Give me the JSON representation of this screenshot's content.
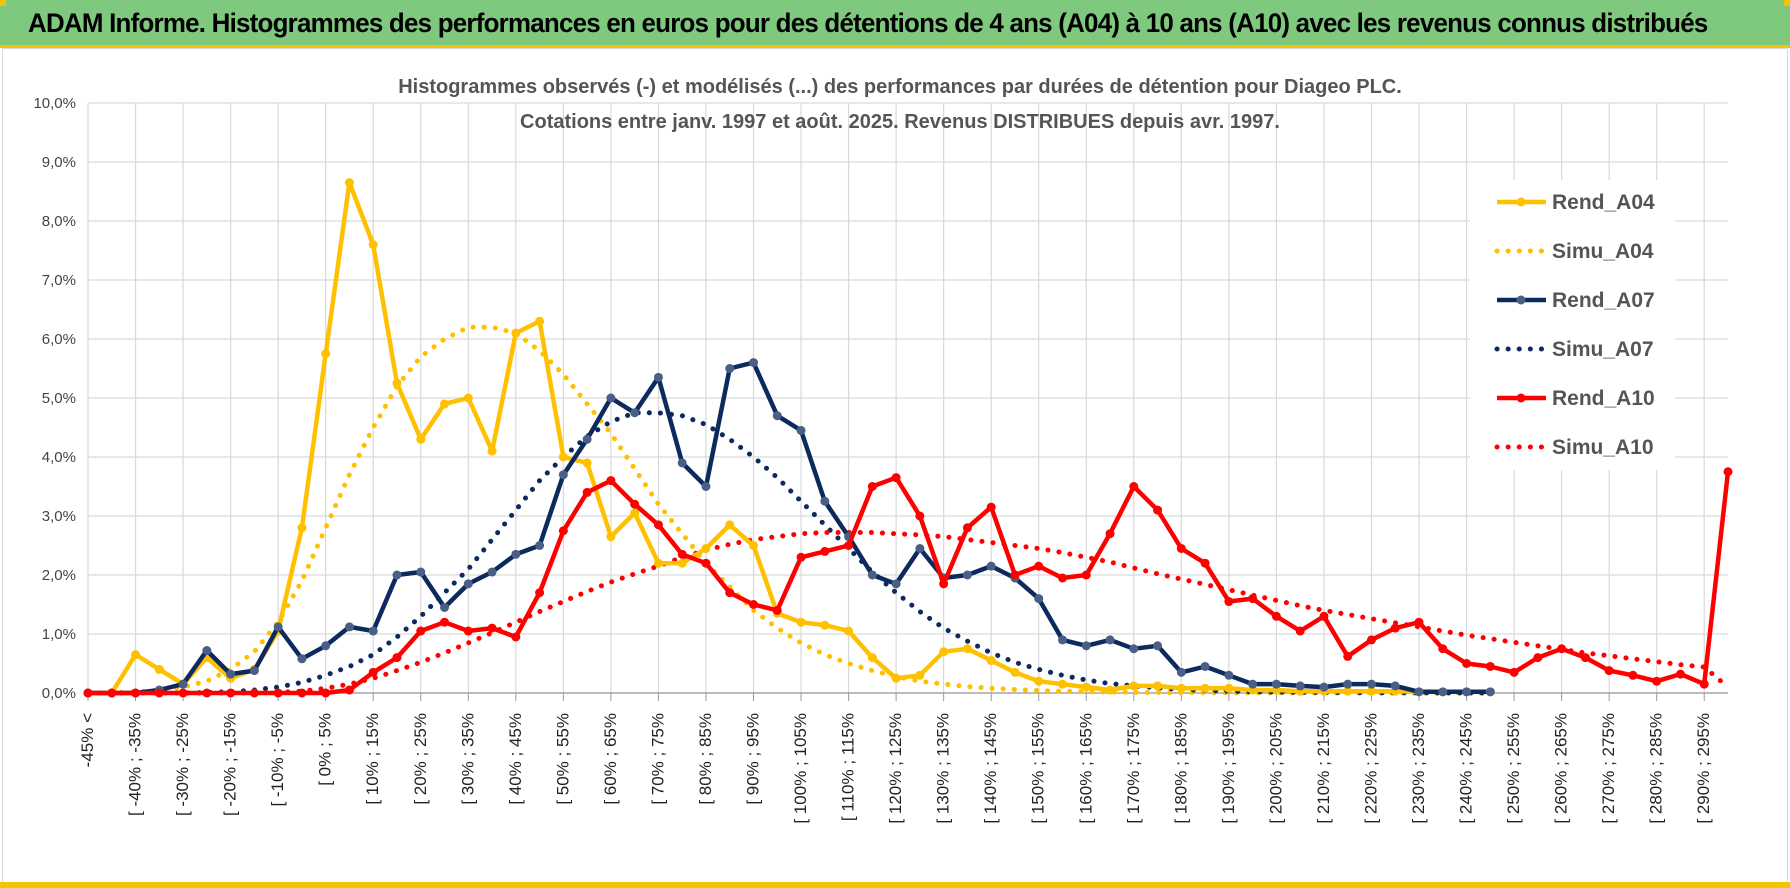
{
  "header": {
    "title": "ADAM Informe. Histogrammes des performances en euros pour des détentions de 4 ans (A04) à 10 ans (A10) avec les revenus connus distribués"
  },
  "colors": {
    "banner": "#7ec97e",
    "accent": "#f5c400",
    "A04": "#ffc000",
    "A07": "#0d2a5e",
    "A10": "#ff0000",
    "grid": "#d9d9d9"
  },
  "chart_data": {
    "type": "line",
    "title": "Histogrammes observés (-) et modélisés (...) des performances par durées de détention pour Diageo PLC.",
    "subtitle": "Cotations entre janv. 1997 et août. 2025. Revenus DISTRIBUES depuis avr. 1997.",
    "ylim": [
      0,
      10
    ],
    "yticks": [
      "0,0%",
      "1,0%",
      "2,0%",
      "3,0%",
      "4,0%",
      "5,0%",
      "6,0%",
      "7,0%",
      "8,0%",
      "9,0%",
      "10,0%"
    ],
    "grid": true,
    "legend": "right",
    "tick_labels": [
      "-45% <",
      "[ -40% ; -35%",
      "[ -30% ; -25%",
      "[ -20% ; -15%",
      "[ -10% ; -5%",
      "[ 0% ; 5%",
      "[ 10% ; 15%",
      "[ 20% ; 25%",
      "[ 30% ; 35%",
      "[ 40% ; 45%",
      "[ 50% ; 55%",
      "[ 60% ; 65%",
      "[ 70% ; 75%",
      "[ 80% ; 85%",
      "[ 90% ; 95%",
      "[ 100% ; 105%",
      "[ 110% ; 115%",
      "[ 120% ; 125%",
      "[ 130% ; 135%",
      "[ 140% ; 145%",
      "[ 150% ; 155%",
      "[ 160% ; 165%",
      "[ 170% ; 175%",
      "[ 180% ; 185%",
      "[ 190% ; 195%",
      "[ 200% ; 205%",
      "[ 210% ; 215%",
      "[ 220% ; 225%",
      "[ 230% ; 235%",
      "[ 240% ; 245%",
      "[ 250% ; 255%",
      "[ 260% ; 265%",
      "[ 270% ; 275%",
      "[ 280% ; 285%",
      "[ 290% ; 295%"
    ],
    "series": [
      {
        "name": "Rend_A04",
        "style": "solid",
        "markers": true,
        "color": "#ffc000",
        "values": [
          0,
          0,
          0.65,
          0.4,
          0.15,
          0.6,
          0.25,
          0.4,
          1.05,
          2.8,
          5.75,
          8.65,
          7.6,
          5.25,
          4.3,
          4.9,
          5.0,
          4.1,
          6.1,
          6.3,
          4.0,
          3.9,
          2.65,
          3.05,
          2.2,
          2.2,
          2.45,
          2.85,
          2.5,
          1.35,
          1.2,
          1.15,
          1.05,
          0.6,
          0.25,
          0.3,
          0.7,
          0.75,
          0.55,
          0.35,
          0.2,
          0.15,
          0.1,
          0.05,
          0.12,
          0.12,
          0.08,
          0.08,
          0.08,
          0.05,
          0.05,
          0.03,
          0.03,
          0.03,
          0.03,
          0.03,
          0.02,
          0.02,
          0.02,
          0.02
        ]
      },
      {
        "name": "Simu_A04",
        "style": "dotted",
        "markers": false,
        "color": "#ffc000",
        "values": [
          0,
          0,
          0.02,
          0.05,
          0.1,
          0.2,
          0.4,
          0.7,
          1.2,
          1.9,
          2.8,
          3.7,
          4.5,
          5.2,
          5.7,
          6.0,
          6.2,
          6.2,
          6.1,
          5.8,
          5.4,
          4.9,
          4.4,
          3.8,
          3.2,
          2.7,
          2.2,
          1.8,
          1.4,
          1.1,
          0.85,
          0.65,
          0.5,
          0.38,
          0.28,
          0.2,
          0.15,
          0.11,
          0.08,
          0.06,
          0.04,
          0.03,
          0.02,
          0.015,
          0.01,
          0.008,
          0.005,
          0.004,
          0.003,
          0.002,
          0.001,
          0,
          0,
          0,
          0,
          0,
          0,
          0,
          0,
          0
        ]
      },
      {
        "name": "Rend_A07",
        "style": "solid",
        "markers": true,
        "color": "#0d2a5e",
        "values": [
          0,
          0,
          0,
          0.05,
          0.15,
          0.72,
          0.32,
          0.38,
          1.12,
          0.58,
          0.8,
          1.12,
          1.05,
          2.0,
          2.05,
          1.45,
          1.85,
          2.05,
          2.35,
          2.5,
          3.7,
          4.3,
          5.0,
          4.75,
          5.35,
          3.9,
          3.5,
          5.5,
          5.6,
          4.7,
          4.45,
          3.25,
          2.65,
          2.0,
          1.85,
          2.45,
          1.95,
          2.0,
          2.15,
          1.95,
          1.6,
          0.9,
          0.8,
          0.9,
          0.75,
          0.8,
          0.35,
          0.45,
          0.3,
          0.15,
          0.15,
          0.12,
          0.1,
          0.15,
          0.15,
          0.12,
          0.02,
          0.02,
          0.02,
          0.02
        ]
      },
      {
        "name": "Simu_A07",
        "style": "dotted",
        "markers": false,
        "color": "#0d2a5e",
        "values": [
          0,
          0,
          0,
          0,
          0,
          0.01,
          0.02,
          0.05,
          0.1,
          0.18,
          0.3,
          0.45,
          0.65,
          0.95,
          1.3,
          1.7,
          2.1,
          2.6,
          3.1,
          3.6,
          4.0,
          4.35,
          4.6,
          4.75,
          4.75,
          4.7,
          4.55,
          4.3,
          4.0,
          3.65,
          3.25,
          2.85,
          2.45,
          2.05,
          1.7,
          1.38,
          1.1,
          0.88,
          0.68,
          0.52,
          0.4,
          0.3,
          0.22,
          0.16,
          0.12,
          0.09,
          0.06,
          0.04,
          0.03,
          0.02,
          0.015,
          0.01,
          0.007,
          0.005,
          0.003,
          0.002,
          0.001,
          0,
          0,
          0
        ]
      },
      {
        "name": "Rend_A10",
        "style": "solid",
        "markers": true,
        "color": "#ff0000",
        "values": [
          0,
          0,
          0,
          0,
          0,
          0,
          0,
          0,
          0,
          0,
          0,
          0.05,
          0.35,
          0.6,
          1.05,
          1.2,
          1.05,
          1.1,
          0.95,
          1.7,
          2.75,
          3.4,
          3.6,
          3.2,
          2.85,
          2.35,
          2.2,
          1.7,
          1.5,
          1.4,
          2.3,
          2.4,
          2.5,
          3.5,
          3.65,
          3.0,
          1.85,
          2.8,
          3.15,
          2.0,
          2.15,
          1.95,
          2.0,
          2.7,
          3.5,
          3.1,
          2.45,
          2.2,
          1.55,
          1.6,
          1.3,
          1.05,
          1.3,
          0.62,
          0.9,
          1.1,
          1.2,
          0.75,
          0.5,
          0.45,
          0.35,
          0.6,
          0.75,
          0.6,
          0.38,
          0.3,
          0.2,
          0.32,
          0.15,
          3.75
        ]
      },
      {
        "name": "Simu_A10",
        "style": "dotted",
        "markers": false,
        "color": "#ff0000",
        "values": [
          0,
          0,
          0,
          0,
          0,
          0,
          0,
          0,
          0.01,
          0.03,
          0.08,
          0.15,
          0.25,
          0.38,
          0.52,
          0.68,
          0.85,
          1.02,
          1.2,
          1.38,
          1.55,
          1.72,
          1.88,
          2.02,
          2.15,
          2.3,
          2.42,
          2.52,
          2.6,
          2.65,
          2.7,
          2.72,
          2.72,
          2.72,
          2.7,
          2.68,
          2.65,
          2.6,
          2.55,
          2.5,
          2.45,
          2.38,
          2.3,
          2.22,
          2.12,
          2.02,
          1.93,
          1.84,
          1.75,
          1.66,
          1.57,
          1.48,
          1.4,
          1.33,
          1.26,
          1.19,
          1.12,
          1.05,
          0.98,
          0.92,
          0.86,
          0.8,
          0.74,
          0.68,
          0.63,
          0.58,
          0.53,
          0.48,
          0.44,
          0.1
        ]
      }
    ]
  }
}
